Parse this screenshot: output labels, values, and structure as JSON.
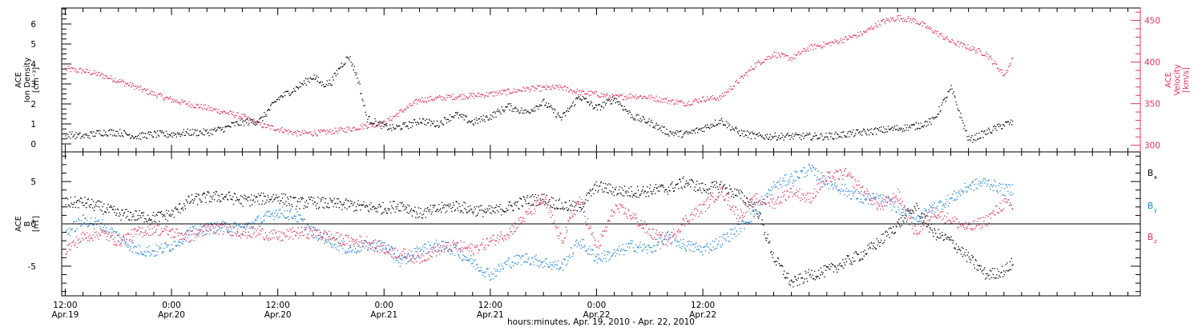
{
  "chart_data": [
    {
      "type": "scatter",
      "panel": "top",
      "left_axis": {
        "label_lines": [
          "ACE",
          "Ion Density"
        ],
        "unit": "[cm⁻³]",
        "ylim": [
          -0.4,
          6.8
        ],
        "ticks": [
          "0",
          "1",
          "2",
          "3",
          "4",
          "5",
          "6"
        ],
        "color": "#000000"
      },
      "right_axis": {
        "label_lines": [
          "ACE",
          "Velocity"
        ],
        "unit": "[km/s]",
        "ylim": [
          292,
          465
        ],
        "ticks": [
          "300",
          "350",
          "400",
          "450"
        ],
        "color": "#e8305a"
      },
      "series": [
        {
          "color": "#000000",
          "axis": "left",
          "x": [
            0,
            2,
            4,
            6,
            8,
            10,
            12,
            14,
            16,
            18,
            19,
            20,
            22,
            24,
            26,
            28,
            29,
            30,
            31,
            32,
            33,
            34,
            36,
            37,
            38,
            39,
            40,
            42,
            44,
            46,
            48,
            50,
            52,
            54,
            56,
            58,
            60,
            62,
            64,
            66,
            68,
            70,
            72,
            74,
            76,
            78,
            80,
            82,
            84,
            86,
            88,
            90,
            92,
            94,
            96,
            98,
            100,
            102,
            104,
            106,
            107
          ],
          "y": [
            0.5,
            0.4,
            0.6,
            0.6,
            0.4,
            0.5,
            0.5,
            0.6,
            0.6,
            0.8,
            1.0,
            1.1,
            1.2,
            2.3,
            2.8,
            3.4,
            3.0,
            3.1,
            3.9,
            4.4,
            3.3,
            1.3,
            0.9,
            0.8,
            0.9,
            1.0,
            1.2,
            1.0,
            1.5,
            1.1,
            1.4,
            1.9,
            1.6,
            2.1,
            1.3,
            2.4,
            1.8,
            2.3,
            1.4,
            1.1,
            0.6,
            0.5,
            0.8,
            1.2,
            0.6,
            0.4,
            0.4,
            0.4,
            0.4,
            0.4,
            0.5,
            0.6,
            0.7,
            0.8,
            0.9,
            1.2,
            2.8,
            0.2,
            0.6,
            1.0,
            1.1
          ]
        },
        {
          "color": "#e8305a",
          "axis": "right",
          "x": [
            0,
            2,
            4,
            6,
            8,
            10,
            12,
            14,
            16,
            18,
            20,
            22,
            24,
            26,
            28,
            30,
            32,
            34,
            36,
            38,
            40,
            42,
            44,
            46,
            48,
            50,
            52,
            54,
            56,
            58,
            60,
            62,
            64,
            66,
            68,
            70,
            72,
            74,
            76,
            78,
            80,
            82,
            84,
            86,
            88,
            90,
            92,
            94,
            96,
            98,
            100,
            102,
            104,
            106,
            107
          ],
          "y": [
            392,
            390,
            385,
            378,
            370,
            362,
            355,
            350,
            345,
            340,
            335,
            325,
            320,
            315,
            315,
            317,
            320,
            324,
            327,
            342,
            355,
            357,
            359,
            360,
            362,
            365,
            368,
            369,
            370,
            364,
            362,
            358,
            360,
            358,
            354,
            351,
            356,
            358,
            378,
            398,
            410,
            405,
            418,
            422,
            428,
            435,
            448,
            454,
            450,
            438,
            425,
            418,
            410,
            385,
            405
          ]
        }
      ]
    },
    {
      "type": "scatter",
      "panel": "bottom",
      "left_axis": {
        "label_lines": [
          "ACE",
          "B"
        ],
        "unit": "[nT]",
        "ylim": [
          -8.5,
          8.5
        ],
        "ticks": [
          "-5",
          "0",
          "5"
        ],
        "color": "#000000"
      },
      "series": [
        {
          "name": "B_x",
          "legend_main": "B",
          "legend_sub": "x",
          "color": "#000000",
          "x": [
            0,
            2,
            4,
            6,
            8,
            10,
            12,
            14,
            16,
            18,
            20,
            22,
            24,
            26,
            28,
            30,
            32,
            34,
            36,
            38,
            40,
            42,
            44,
            46,
            48,
            50,
            52,
            54,
            56,
            58,
            60,
            62,
            64,
            66,
            68,
            70,
            72,
            74,
            76,
            78,
            80,
            82,
            84,
            86,
            88,
            90,
            92,
            94,
            96,
            98,
            100,
            102,
            104,
            106,
            107
          ],
          "y": [
            2.5,
            2.6,
            2.0,
            1.2,
            1.0,
            0.8,
            1.2,
            2.8,
            3.2,
            3.3,
            2.8,
            3.0,
            3.2,
            2.5,
            2.6,
            2.4,
            2.3,
            2.0,
            1.9,
            2.3,
            1.2,
            1.8,
            2.2,
            1.7,
            1.5,
            2.0,
            2.8,
            3.0,
            2.2,
            2.0,
            4.5,
            4.0,
            3.8,
            4.0,
            4.2,
            5.0,
            4.2,
            4.5,
            3.5,
            2.0,
            -4.0,
            -7.0,
            -6.0,
            -5.5,
            -4.5,
            -3.5,
            -2.0,
            0.0,
            2.0,
            -1.0,
            -2.0,
            -4.0,
            -6.0,
            -5.5,
            -4.5
          ]
        },
        {
          "name": "B_y",
          "legend_main": "B",
          "legend_sub": "y",
          "color": "#1d83e0",
          "x": [
            0,
            2,
            4,
            6,
            8,
            10,
            12,
            14,
            16,
            18,
            20,
            22,
            24,
            26,
            28,
            30,
            32,
            34,
            36,
            38,
            40,
            42,
            44,
            46,
            48,
            50,
            52,
            54,
            56,
            58,
            60,
            62,
            64,
            66,
            68,
            70,
            72,
            74,
            76,
            78,
            80,
            82,
            84,
            86,
            88,
            90,
            92,
            94,
            96,
            98,
            100,
            102,
            104,
            106,
            107
          ],
          "y": [
            -1.0,
            0.5,
            0.0,
            -1.5,
            -3.0,
            -3.2,
            -2.5,
            -1.0,
            -0.5,
            -0.3,
            -0.5,
            0.5,
            1.5,
            1.0,
            -1.0,
            -2.0,
            -3.0,
            -2.5,
            -2.5,
            -4.5,
            -3.0,
            -2.5,
            -3.0,
            -4.5,
            -6.0,
            -4.5,
            -4.0,
            -4.5,
            -5.0,
            -2.0,
            -4.0,
            -3.5,
            -2.5,
            -3.0,
            -1.5,
            -2.5,
            -3.0,
            -2.0,
            -0.5,
            1.5,
            4.5,
            5.5,
            6.5,
            5.0,
            4.0,
            3.0,
            3.0,
            2.0,
            0.5,
            2.0,
            3.0,
            4.5,
            5.0,
            4.0,
            4.2
          ]
        },
        {
          "name": "B_z",
          "legend_main": "B",
          "legend_sub": "z",
          "color": "#e8305a",
          "x": [
            0,
            2,
            4,
            6,
            8,
            10,
            12,
            14,
            16,
            18,
            20,
            22,
            24,
            26,
            28,
            30,
            32,
            34,
            36,
            38,
            40,
            42,
            44,
            46,
            48,
            50,
            52,
            54,
            56,
            58,
            60,
            62,
            64,
            66,
            68,
            70,
            72,
            74,
            76,
            78,
            80,
            82,
            84,
            86,
            88,
            90,
            92,
            94,
            96,
            98,
            100,
            102,
            104,
            106,
            107
          ],
          "y": [
            -3.0,
            -1.5,
            -1.0,
            -2.0,
            -1.0,
            -0.5,
            -1.0,
            -1.5,
            -0.5,
            -0.5,
            -1.0,
            -1.0,
            -1.5,
            -1.0,
            -1.0,
            -1.5,
            -2.0,
            -2.0,
            -3.0,
            -3.5,
            -4.0,
            -3.0,
            -2.5,
            -3.0,
            -2.0,
            -1.0,
            1.0,
            3.0,
            -2.0,
            3.0,
            -3.0,
            2.0,
            1.0,
            -1.0,
            -2.0,
            0.5,
            2.0,
            4.0,
            1.0,
            3.0,
            2.5,
            4.0,
            3.0,
            5.5,
            6.0,
            4.0,
            2.0,
            3.5,
            -1.0,
            1.5,
            0.5,
            -0.5,
            0.5,
            2.5,
            2.0
          ]
        }
      ]
    }
  ],
  "x_axis": {
    "title": "hours:minutes, Apr. 19, 2010 - Apr. 22, 2010",
    "xlim": [
      -0.4,
      121.4
    ],
    "ticks": [
      {
        "x": 0,
        "time": "12:00",
        "date": "Apr.19"
      },
      {
        "x": 12,
        "time": "0:00",
        "date": "Apr.20"
      },
      {
        "x": 24,
        "time": "12:00",
        "date": "Apr.20"
      },
      {
        "x": 36,
        "time": "0:00",
        "date": "Apr.21"
      },
      {
        "x": 48,
        "time": "12:00",
        "date": "Apr.21"
      },
      {
        "x": 60,
        "time": "0:00",
        "date": "Apr.22"
      },
      {
        "x": 72,
        "time": "12:00",
        "date": "Apr.22"
      }
    ],
    "minor_step": 2
  }
}
